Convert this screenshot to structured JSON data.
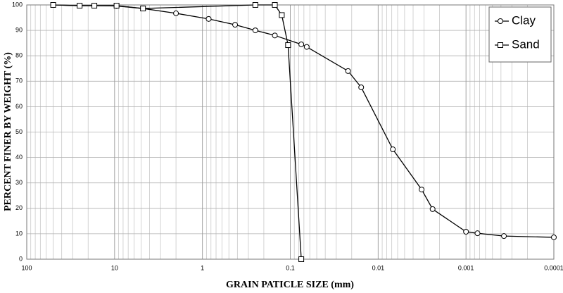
{
  "chart_data": {
    "type": "line",
    "xlabel": "GRAIN PATICLE SIZE (mm)",
    "ylabel": "PERCENT FINER BY WEIGHT (%)",
    "xscale": "log",
    "grid": true,
    "minor_grid": true,
    "legend": "upper right",
    "xlim": [
      100,
      0.0001
    ],
    "xticks": [
      100,
      10,
      1,
      0.1,
      0.01,
      0.001,
      0.0001
    ],
    "ylim": [
      0,
      100
    ],
    "yticks": [
      0,
      10,
      20,
      30,
      40,
      50,
      60,
      70,
      80,
      90,
      100
    ],
    "series": [
      {
        "name": "Clay",
        "color": "#000000",
        "marker": "circle",
        "x": [
          50,
          25,
          17,
          9.5,
          4.75,
          2,
          0.85,
          0.425,
          0.25,
          0.15,
          0.075,
          0.065,
          0.022,
          0.0156,
          0.0068,
          0.0032,
          0.0024,
          0.001,
          0.00074,
          0.00037,
          0.0001
        ],
        "values": [
          100,
          99.7,
          99.7,
          99.6,
          98.6,
          96.7,
          94.5,
          92.2,
          90,
          88,
          84.5,
          83.5,
          74,
          67.6,
          43.2,
          27.4,
          19.7,
          10.8,
          10.2,
          9.1,
          8.6
        ]
      },
      {
        "name": "Sand",
        "color": "#000000",
        "marker": "square",
        "x": [
          50,
          25,
          17,
          9.5,
          4.75,
          0.25,
          0.15,
          0.125,
          0.106,
          0.075
        ],
        "values": [
          100,
          99.7,
          99.7,
          99.7,
          98.6,
          100,
          100,
          96,
          84.2,
          0
        ]
      }
    ]
  }
}
